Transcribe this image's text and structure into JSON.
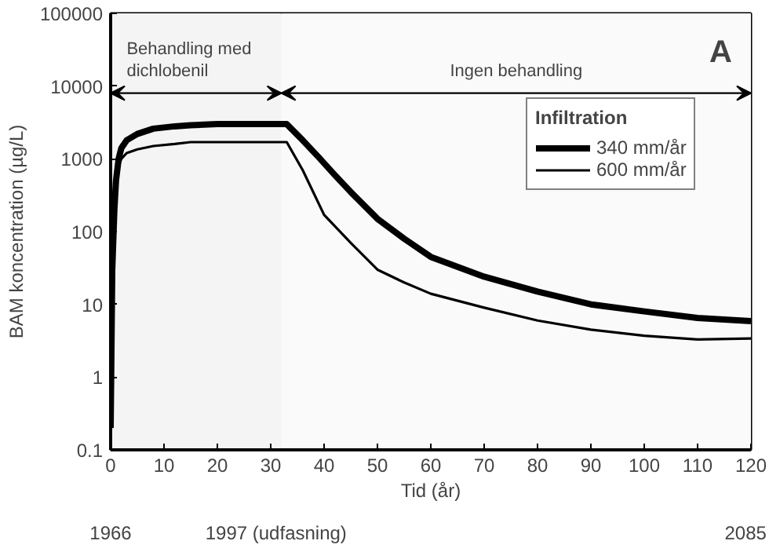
{
  "chart_data": {
    "type": "line",
    "xlabel": "Tid (år)",
    "ylabel": "BAM koncentration (µg/L)",
    "legend_title": "Infiltration",
    "log": "y",
    "xlim": [
      0,
      120
    ],
    "xticks": [
      0,
      10,
      20,
      30,
      40,
      50,
      60,
      70,
      80,
      90,
      100,
      110,
      120
    ],
    "ylim": [
      0.1,
      100000
    ],
    "yticks": [
      0.1,
      1,
      10,
      100,
      1000,
      10000,
      100000
    ],
    "x2lim": [
      1966,
      2086
    ],
    "x2ticks": [
      1966,
      {
        "value": 1997,
        "label": "1997 (udfasning)"
      },
      2085
    ],
    "grid": false,
    "legend": "top right",
    "marker": "none",
    "line_style": "solid",
    "bands": [
      {
        "axis": "x",
        "from": 0,
        "to": 32,
        "label": "Behandling med dichlobenil",
        "color": "#f4f4f4"
      },
      {
        "axis": "x",
        "from": 32,
        "to": 120,
        "label": "Ingen behandling",
        "color": "#fafafa"
      }
    ],
    "annotations": [
      "A"
    ],
    "series": [
      {
        "name": "340 mm/år",
        "color": "#000000",
        "x": [
          0,
          0.3,
          0.7,
          1,
          1.5,
          2,
          3,
          5,
          8,
          12,
          15,
          20,
          25,
          30,
          33,
          36,
          39,
          42,
          45,
          50,
          55,
          60,
          70,
          80,
          90,
          100,
          110,
          120
        ],
        "values": [
          0.2,
          30,
          200,
          500,
          1000,
          1400,
          1800,
          2200,
          2600,
          2800,
          2900,
          3000,
          3000,
          3000,
          3000,
          1800,
          1050,
          600,
          350,
          150,
          80,
          45,
          24,
          15,
          10,
          8,
          6.5,
          5.9
        ]
      },
      {
        "name": "600 mm/år",
        "color": "#000000",
        "x": [
          0,
          0.3,
          0.7,
          1,
          1.5,
          2,
          3,
          5,
          8,
          12,
          15,
          20,
          25,
          30,
          33,
          36,
          40,
          45,
          50,
          55,
          60,
          70,
          80,
          90,
          100,
          110,
          120
        ],
        "values": [
          0.2,
          25,
          150,
          400,
          800,
          1000,
          1200,
          1350,
          1500,
          1600,
          1700,
          1700,
          1700,
          1700,
          1700,
          700,
          170,
          70,
          30,
          20,
          14,
          9,
          6,
          4.5,
          3.7,
          3.3,
          3.4
        ]
      }
    ]
  }
}
